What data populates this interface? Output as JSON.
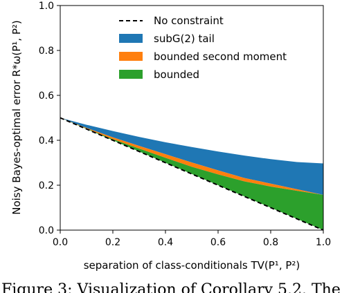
{
  "chart_data": {
    "type": "area",
    "xlabel": "separation of class-conditionals TV(P¹, P²)",
    "ylabel": "Noisy Bayes-optimal error R*ω(P¹, P²)",
    "xlim": [
      0.0,
      1.0
    ],
    "ylim": [
      0.0,
      1.0
    ],
    "xticks": [
      "0.0",
      "0.2",
      "0.4",
      "0.6",
      "0.8",
      "1.0"
    ],
    "yticks": [
      "0.0",
      "0.2",
      "0.4",
      "0.6",
      "0.8",
      "1.0"
    ],
    "grid": false,
    "legend_position": "top-right",
    "x": [
      0.0,
      0.1,
      0.2,
      0.3,
      0.4,
      0.5,
      0.6,
      0.7,
      0.8,
      0.9,
      1.0
    ],
    "series": [
      {
        "name": "No constraint",
        "kind": "dashed-line",
        "color": "#000000",
        "values": [
          0.5,
          0.45,
          0.4,
          0.35,
          0.3,
          0.25,
          0.2,
          0.15,
          0.1,
          0.05,
          0.0
        ]
      },
      {
        "name": "subG(2) tail",
        "kind": "band",
        "color": "#1f77b4",
        "lower": [
          0.5,
          0.455,
          0.413,
          0.375,
          0.338,
          0.301,
          0.266,
          0.232,
          0.207,
          0.182,
          0.157
        ],
        "upper": [
          0.5,
          0.469,
          0.441,
          0.415,
          0.391,
          0.37,
          0.35,
          0.332,
          0.316,
          0.303,
          0.297
        ]
      },
      {
        "name": "bounded second moment",
        "kind": "band",
        "color": "#ff7f0e",
        "lower": [
          0.5,
          0.452,
          0.405,
          0.363,
          0.322,
          0.282,
          0.248,
          0.217,
          0.194,
          0.175,
          0.157
        ],
        "upper": [
          0.5,
          0.455,
          0.413,
          0.375,
          0.338,
          0.301,
          0.266,
          0.232,
          0.207,
          0.182,
          0.157
        ]
      },
      {
        "name": "bounded",
        "kind": "band",
        "color": "#2ca02c",
        "lower": [
          0.5,
          0.45,
          0.4,
          0.35,
          0.3,
          0.25,
          0.2,
          0.15,
          0.1,
          0.05,
          0.0
        ],
        "upper": [
          0.5,
          0.452,
          0.405,
          0.363,
          0.322,
          0.282,
          0.248,
          0.217,
          0.194,
          0.175,
          0.157
        ]
      }
    ]
  },
  "caption": "Figure 3: Visualization of Corollary 5.2. The"
}
